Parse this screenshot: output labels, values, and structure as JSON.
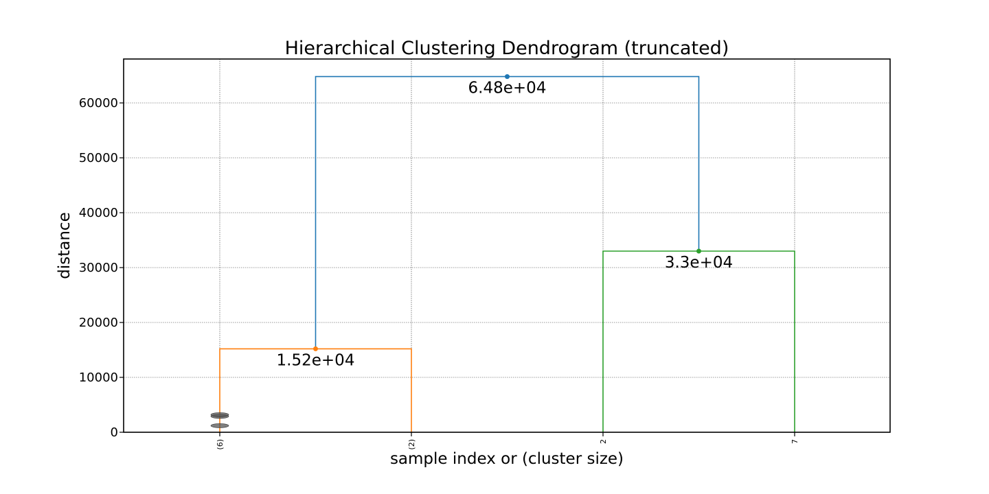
{
  "chart_data": {
    "type": "dendrogram",
    "title": "Hierarchical Clustering Dendrogram (truncated)",
    "xlabel": "sample index or (cluster size)",
    "ylabel": "distance",
    "ylim": [
      0,
      68000
    ],
    "yticks": [
      0,
      10000,
      20000,
      30000,
      40000,
      50000,
      60000
    ],
    "grid": true,
    "leaves": [
      "(6)",
      "(2)",
      "2",
      "7"
    ],
    "links": [
      {
        "left": 0,
        "right": 1,
        "height": 15200,
        "left_base": 0,
        "right_base": 0,
        "color": "#ff7f0e",
        "label": "1.52e+04"
      },
      {
        "left": 2,
        "right": 3,
        "height": 33000,
        "left_base": 0,
        "right_base": 0,
        "color": "#2ca02c",
        "label": "3.3e+04"
      },
      {
        "left": 0.5,
        "right": 2.5,
        "height": 64800,
        "left_base": 15200,
        "right_base": 33000,
        "color": "#1f77b4",
        "label": "6.48e+04"
      }
    ],
    "truncated_markers": [
      {
        "leaf": 0,
        "heights": [
          1200,
          2900,
          3200
        ]
      }
    ]
  }
}
